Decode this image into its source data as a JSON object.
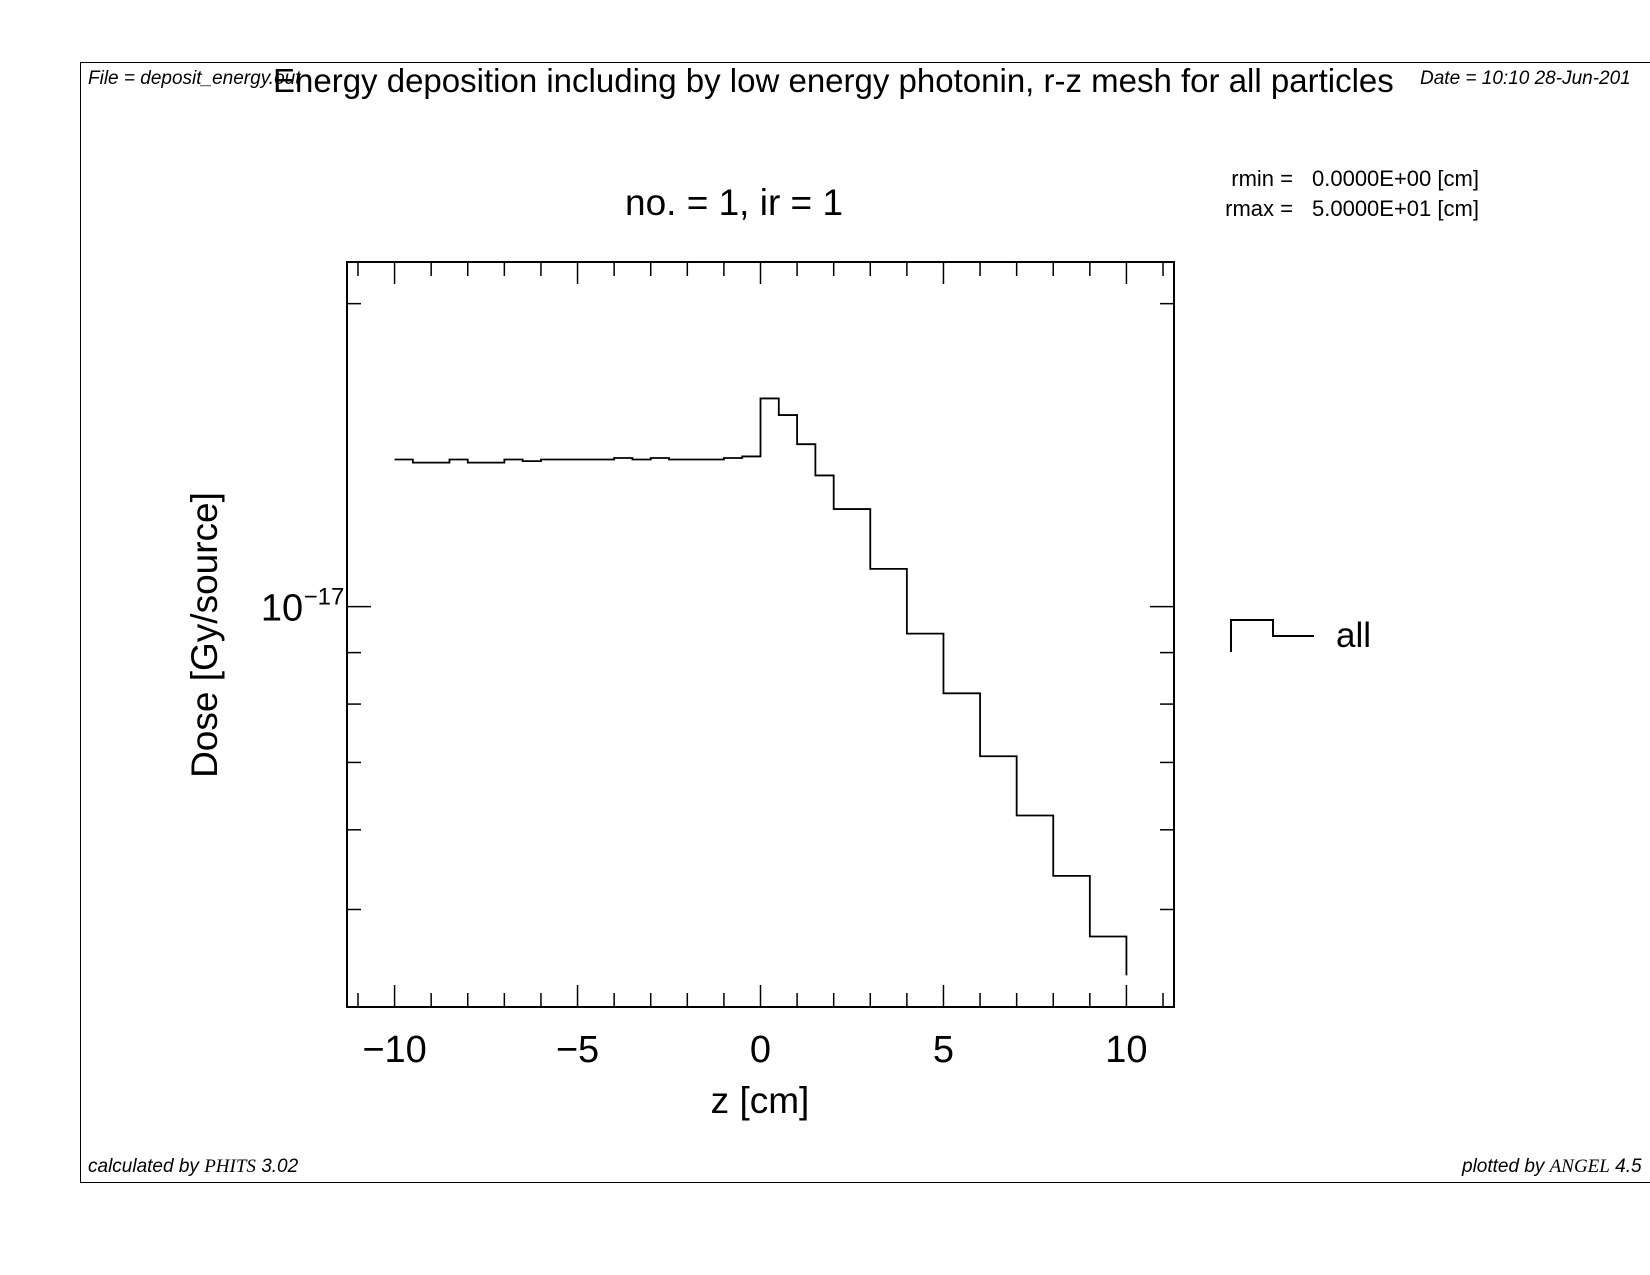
{
  "header": {
    "file": "File = deposit_energy.out",
    "date": "Date = 10:10 28-Jun-201"
  },
  "footer": {
    "calc_prefix": "calculated by ",
    "calc_code": "PHITS",
    "calc_version": " 3.02",
    "plot_prefix": "plotted by ",
    "plot_code": "ANGEL",
    "plot_version": " 4.5"
  },
  "params": {
    "rmin_label": "rmin  =",
    "rmin_value": "0.0000E+00 [cm]",
    "rmax_label": "rmax  =",
    "rmax_value": "5.0000E+01 [cm]"
  },
  "chart_data": {
    "type": "line",
    "style": "step",
    "title": "Energy deposition including by low energy photonin, r-z mesh for all particles",
    "subtitle": "no. =  1,  ir =  1",
    "xlabel": "z [cm]",
    "ylabel": "Dose [Gy/source]",
    "xlim": [
      -11.3,
      11.3
    ],
    "ylim": [
      4e-18,
      2.2e-17
    ],
    "yscale": "log",
    "xticks": [
      -10,
      -5,
      0,
      5,
      10
    ],
    "xtick_labels": [
      "−10",
      "−5",
      "0",
      "5",
      "10"
    ],
    "ytick_label_base": "10",
    "ytick_label_exp": "−17",
    "legend_position": "right",
    "series": [
      {
        "name": "all",
        "color": "#000000",
        "x": [
          -10,
          -9.5,
          -9,
          -8.5,
          -8,
          -7.5,
          -7,
          -6.5,
          -6,
          -5.5,
          -5,
          -4.5,
          -4,
          -3.5,
          -3,
          -2.5,
          -2,
          -1.5,
          -1,
          -0.5,
          0,
          0.1,
          0.5,
          1,
          1.5,
          2,
          3,
          4,
          5,
          6,
          7,
          8,
          9,
          10
        ],
        "y": [
          1.4e-17,
          1.39e-17,
          1.39e-17,
          1.4e-17,
          1.39e-17,
          1.39e-17,
          1.4e-17,
          1.395e-17,
          1.4e-17,
          1.4e-17,
          1.4e-17,
          1.4e-17,
          1.405e-17,
          1.4e-17,
          1.405e-17,
          1.4e-17,
          1.4e-17,
          1.4e-17,
          1.405e-17,
          1.41e-17,
          1.61e-17,
          1.61e-17,
          1.55e-17,
          1.45e-17,
          1.35e-17,
          1.25e-17,
          1.09e-17,
          9.4e-18,
          8.2e-18,
          7.1e-18,
          6.2e-18,
          5.4e-18,
          4.7e-18,
          4.3e-18
        ]
      }
    ]
  }
}
